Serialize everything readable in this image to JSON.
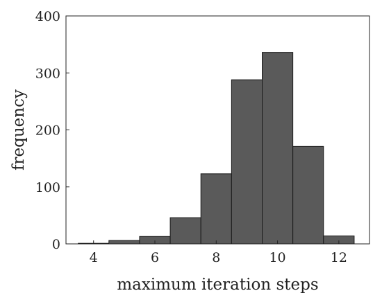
{
  "chart_data": {
    "type": "bar",
    "subtype": "histogram",
    "title": "",
    "xlabel": "maximum iteration steps",
    "ylabel": "frequency",
    "bins": [
      {
        "x": 4,
        "value": 1
      },
      {
        "x": 5,
        "value": 6
      },
      {
        "x": 6,
        "value": 13
      },
      {
        "x": 7,
        "value": 46
      },
      {
        "x": 8,
        "value": 123
      },
      {
        "x": 9,
        "value": 288
      },
      {
        "x": 10,
        "value": 336
      },
      {
        "x": 11,
        "value": 171
      },
      {
        "x": 12,
        "value": 14
      }
    ],
    "bin_width": 1,
    "xlim": [
      3.1,
      13.0
    ],
    "ylim": [
      0,
      400
    ],
    "xticks": [
      4,
      6,
      8,
      10,
      12
    ],
    "yticks": [
      0,
      100,
      200,
      300,
      400
    ],
    "grid": false,
    "bar_color": "#5a5a5a",
    "edge_color": "#1a1a1a"
  }
}
